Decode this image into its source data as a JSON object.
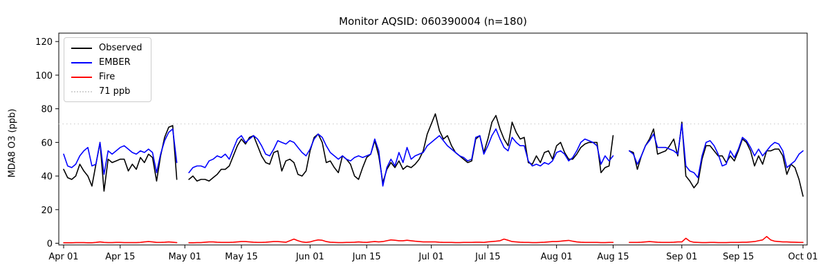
{
  "chart_data": {
    "type": "line",
    "title": "Monitor AQSID: 060390004 (n=180)",
    "ylabel": "MDA8 O3 (ppb)",
    "xlabel": "",
    "y_ticks": [
      0,
      20,
      40,
      60,
      80,
      100,
      120
    ],
    "ylim": [
      -1,
      125
    ],
    "x_tick_days": [
      0,
      14,
      30,
      44,
      61,
      75,
      91,
      105,
      122,
      136,
      153,
      167,
      183
    ],
    "x_tick_labels": [
      "Apr 01",
      "Apr 15",
      "May 01",
      "May 15",
      "Jun 01",
      "Jun 15",
      "Jul 01",
      "Jul 15",
      "Aug 01",
      "Aug 15",
      "Sep 01",
      "Sep 15",
      "Oct 01"
    ],
    "n_days": 184,
    "grid": false,
    "legend_position": "upper left",
    "threshold": {
      "label": "71 ppb",
      "value": 71,
      "color": "#d3d3d3",
      "dash": "dotted"
    },
    "legend_items": [
      {
        "label": "Observed",
        "color": "#000000",
        "dash": "solid"
      },
      {
        "label": "EMBER",
        "color": "#0000ff",
        "dash": "solid"
      },
      {
        "label": "Fire",
        "color": "#ff0000",
        "dash": "solid"
      },
      {
        "label": "71 ppb",
        "color": "#d3d3d3",
        "dash": "dotted"
      }
    ],
    "series": [
      {
        "name": "Observed",
        "color": "#000000",
        "values": [
          44,
          39,
          38,
          40,
          47,
          43,
          40,
          34,
          47,
          60,
          31,
          50,
          48,
          49,
          50,
          50,
          43,
          47,
          44,
          51,
          48,
          53,
          51,
          37,
          52,
          63,
          69,
          70,
          38,
          null,
          null,
          38,
          40,
          37,
          38,
          38,
          37,
          39,
          41,
          44,
          44,
          46,
          52,
          58,
          62,
          59,
          63,
          64,
          58,
          52,
          48,
          47,
          54,
          55,
          43,
          49,
          50,
          48,
          41,
          40,
          43,
          55,
          63,
          65,
          60,
          48,
          49,
          45,
          42,
          52,
          50,
          47,
          40,
          38,
          45,
          51,
          53,
          61,
          52,
          36,
          44,
          48,
          45,
          49,
          44,
          46,
          45,
          47,
          50,
          55,
          65,
          71,
          77,
          67,
          62,
          64,
          58,
          54,
          52,
          50,
          48,
          49,
          62,
          64,
          54,
          62,
          72,
          76,
          68,
          62,
          58,
          72,
          66,
          62,
          63,
          48,
          47,
          52,
          48,
          54,
          55,
          50,
          58,
          60,
          54,
          50,
          50,
          53,
          57,
          59,
          60,
          60,
          60,
          42,
          45,
          46,
          64,
          null,
          null,
          null,
          55,
          54,
          44,
          52,
          58,
          62,
          68,
          53,
          54,
          55,
          58,
          62,
          52,
          72,
          40,
          37,
          33,
          36,
          50,
          58,
          58,
          55,
          52,
          52,
          48,
          52,
          49,
          55,
          62,
          60,
          55,
          46,
          52,
          47,
          55,
          55,
          56,
          56,
          52,
          41,
          47,
          45,
          38,
          28
        ]
      },
      {
        "name": "EMBER",
        "color": "#0000ff",
        "values": [
          53,
          46,
          45,
          47,
          52,
          55,
          57,
          46,
          47,
          60,
          41,
          55,
          53,
          55,
          57,
          58,
          56,
          54,
          53,
          55,
          54,
          56,
          54,
          42,
          53,
          61,
          66,
          68,
          48,
          null,
          null,
          42,
          45,
          46,
          46,
          45,
          49,
          50,
          52,
          51,
          53,
          50,
          56,
          62,
          64,
          60,
          62,
          64,
          62,
          58,
          53,
          52,
          56,
          61,
          60,
          59,
          61,
          60,
          57,
          54,
          52,
          56,
          62,
          65,
          63,
          58,
          54,
          52,
          50,
          52,
          50,
          49,
          51,
          52,
          51,
          52,
          53,
          62,
          55,
          34,
          45,
          50,
          46,
          54,
          48,
          57,
          50,
          52,
          53,
          54,
          58,
          60,
          62,
          64,
          61,
          58,
          56,
          54,
          52,
          51,
          49,
          50,
          63,
          64,
          53,
          58,
          64,
          68,
          62,
          57,
          55,
          63,
          60,
          58,
          58,
          49,
          46,
          47,
          46,
          48,
          47,
          49,
          54,
          55,
          53,
          49,
          51,
          55,
          60,
          62,
          61,
          60,
          58,
          47,
          52,
          49,
          52,
          null,
          null,
          null,
          55,
          53,
          47,
          52,
          58,
          61,
          65,
          57,
          57,
          57,
          56,
          55,
          53,
          71,
          46,
          43,
          42,
          39,
          52,
          60,
          61,
          58,
          53,
          46,
          47,
          55,
          51,
          56,
          63,
          61,
          57,
          52,
          56,
          52,
          55,
          58,
          60,
          59,
          55,
          45,
          47,
          49,
          53,
          55
        ]
      },
      {
        "name": "Fire",
        "color": "#ff0000",
        "values": [
          0.3,
          0.3,
          0.3,
          0.4,
          0.4,
          0.4,
          0.3,
          0.3,
          0.5,
          0.8,
          0.5,
          0.4,
          0.4,
          0.5,
          0.5,
          0.4,
          0.4,
          0.4,
          0.4,
          0.5,
          0.8,
          1.0,
          0.8,
          0.5,
          0.5,
          0.6,
          0.8,
          0.6,
          0.4,
          null,
          null,
          0.3,
          0.3,
          0.4,
          0.4,
          0.6,
          0.8,
          0.8,
          0.6,
          0.5,
          0.5,
          0.5,
          0.6,
          0.8,
          1.0,
          1.0,
          0.8,
          0.6,
          0.5,
          0.5,
          0.6,
          0.8,
          1.0,
          1.0,
          0.8,
          0.6,
          1.5,
          2.5,
          1.5,
          0.8,
          0.5,
          0.8,
          1.5,
          2.0,
          1.8,
          1.0,
          0.6,
          0.5,
          0.4,
          0.4,
          0.5,
          0.5,
          0.6,
          0.8,
          0.6,
          0.5,
          0.8,
          1.0,
          0.8,
          1.0,
          1.5,
          2.0,
          1.8,
          1.5,
          1.5,
          1.8,
          1.5,
          1.2,
          1.0,
          0.8,
          0.8,
          0.8,
          0.8,
          0.6,
          0.5,
          0.5,
          0.5,
          0.4,
          0.4,
          0.5,
          0.5,
          0.5,
          0.6,
          0.6,
          0.5,
          0.8,
          1.0,
          1.2,
          1.5,
          2.5,
          1.8,
          1.0,
          0.8,
          0.6,
          0.5,
          0.5,
          0.4,
          0.4,
          0.5,
          0.6,
          0.8,
          1.0,
          1.0,
          1.2,
          1.5,
          1.7,
          1.2,
          0.8,
          0.6,
          0.5,
          0.5,
          0.5,
          0.5,
          0.4,
          0.4,
          0.5,
          0.5,
          null,
          null,
          null,
          0.5,
          0.5,
          0.5,
          0.6,
          0.8,
          1.0,
          0.8,
          0.6,
          0.5,
          0.5,
          0.5,
          0.6,
          0.8,
          0.8,
          3.0,
          1.2,
          0.6,
          0.5,
          0.4,
          0.4,
          0.5,
          0.5,
          0.4,
          0.4,
          0.4,
          0.5,
          0.5,
          0.5,
          0.6,
          0.6,
          0.8,
          1.0,
          1.5,
          2.0,
          4.0,
          2.0,
          1.2,
          1.0,
          0.8,
          0.8,
          0.7,
          0.6,
          0.5,
          0.5
        ]
      }
    ]
  }
}
